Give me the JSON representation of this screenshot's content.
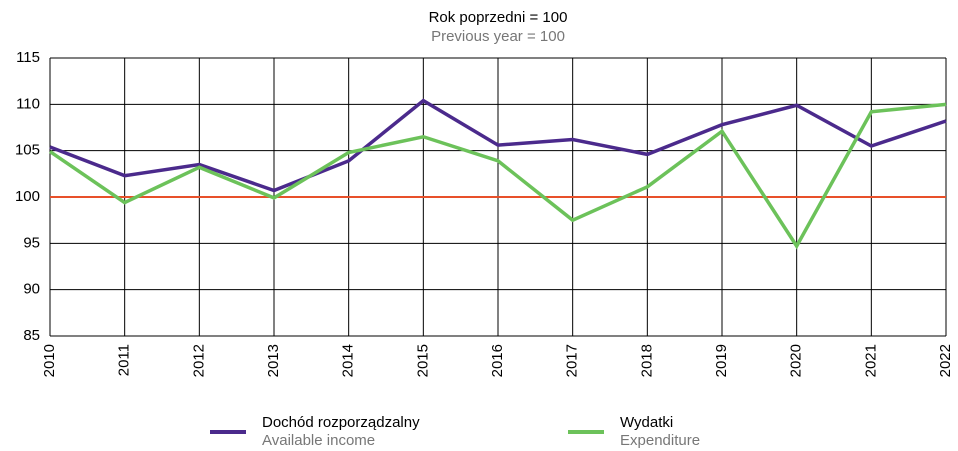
{
  "chart_data": {
    "type": "line",
    "title": "Rok poprzedni = 100",
    "subtitle": "Previous year = 100",
    "x": [
      2010,
      2011,
      2012,
      2013,
      2014,
      2015,
      2016,
      2017,
      2018,
      2019,
      2020,
      2021,
      2022
    ],
    "xlim": [
      2010,
      2022
    ],
    "xticks": [
      2010,
      2011,
      2012,
      2013,
      2014,
      2015,
      2016,
      2017,
      2018,
      2019,
      2020,
      2021,
      2022
    ],
    "ylim": [
      85,
      115
    ],
    "yticks": [
      85,
      90,
      95,
      100,
      105,
      110,
      115
    ],
    "grid": true,
    "reference_line": {
      "value": 100,
      "color": "#e8502a"
    },
    "series": [
      {
        "name": "Dochód rozporządzalny",
        "name_en": "Available income",
        "color": "#4b2a8c",
        "values": [
          105.4,
          102.3,
          103.5,
          100.7,
          103.9,
          110.4,
          105.6,
          106.2,
          104.6,
          107.8,
          109.9,
          105.5,
          108.2
        ]
      },
      {
        "name": "Wydatki",
        "name_en": "Expenditure",
        "color": "#6cc25a",
        "values": [
          104.9,
          99.4,
          103.2,
          99.9,
          104.8,
          106.5,
          103.9,
          97.5,
          101.1,
          107.1,
          94.7,
          109.2,
          110.0
        ]
      }
    ]
  }
}
